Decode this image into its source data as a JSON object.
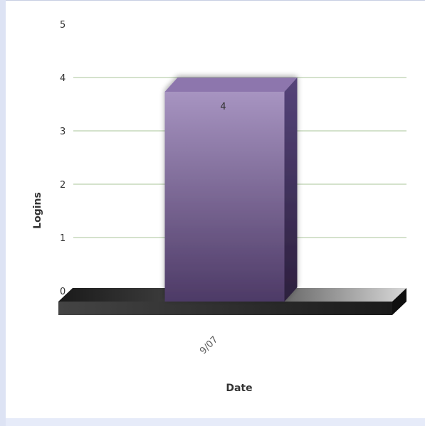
{
  "chart_data": {
    "type": "bar",
    "title": "",
    "xlabel": "Date",
    "ylabel": "Logins",
    "categories": [
      "9/07"
    ],
    "values": [
      4
    ],
    "data_labels": [
      "4"
    ],
    "ylim": [
      0,
      5
    ],
    "yticks": [
      "0",
      "1",
      "2",
      "3",
      "4",
      "5"
    ],
    "grid": true,
    "style": "3d",
    "colors": {
      "bar_front": "#6c5488",
      "bar_top": "#8d76ad",
      "bar_side": "#3b2a52",
      "grid": "#a8c49a",
      "floor": "#2a2a2a",
      "background": "#ffffff",
      "page_background": "#dde3f4"
    }
  }
}
